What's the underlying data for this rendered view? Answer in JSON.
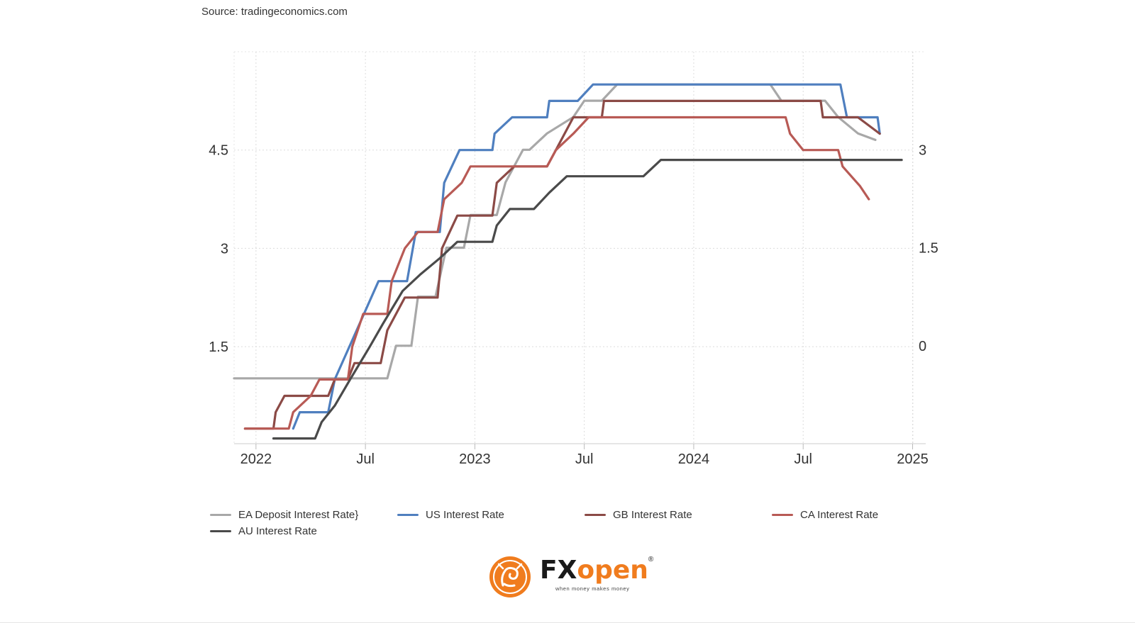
{
  "source": "Source: tradingeconomics.com",
  "chart_data": {
    "type": "line",
    "title": "",
    "xlabel": "",
    "x_ticks": [
      "2022",
      "Jul",
      "2023",
      "Jul",
      "2024",
      "Jul",
      "2025"
    ],
    "x_tick_values": [
      2022.0,
      2022.5,
      2023.0,
      2023.5,
      2024.0,
      2024.5,
      2025.0
    ],
    "xlim": [
      2021.9,
      2025.06
    ],
    "y_left": {
      "ticks": [
        "1.5",
        "3",
        "4.5"
      ],
      "values": [
        1.5,
        3,
        4.5
      ],
      "lim": [
        0.02,
        6.0
      ]
    },
    "y_right": {
      "ticks": [
        "0",
        "1.5",
        "3"
      ],
      "values": [
        0,
        1.5,
        3
      ],
      "lim": [
        -1.5,
        4.5
      ]
    },
    "grid": true,
    "legend_position": "bottom",
    "series": [
      {
        "name": "EA Deposit Interest Rate",
        "color": "#a8a8a8",
        "axis": "right",
        "points": [
          [
            2021.9,
            -0.5
          ],
          [
            2022.6,
            -0.5
          ],
          [
            2022.6,
            -0.5
          ],
          [
            2022.64,
            0.0
          ],
          [
            2022.68,
            0.0
          ],
          [
            2022.71,
            0.0
          ],
          [
            2022.74,
            0.75
          ],
          [
            2022.82,
            0.75
          ],
          [
            2022.87,
            1.5
          ],
          [
            2022.95,
            1.5
          ],
          [
            2022.98,
            2.0
          ],
          [
            2023.1,
            2.0
          ],
          [
            2023.14,
            2.5
          ],
          [
            2023.22,
            3.0
          ],
          [
            2023.25,
            3.0
          ],
          [
            2023.33,
            3.25
          ],
          [
            2023.45,
            3.5
          ],
          [
            2023.5,
            3.75
          ],
          [
            2023.58,
            3.75
          ],
          [
            2023.65,
            4.0
          ],
          [
            2024.35,
            4.0
          ],
          [
            2024.4,
            3.75
          ],
          [
            2024.6,
            3.75
          ],
          [
            2024.66,
            3.5
          ],
          [
            2024.75,
            3.25
          ],
          [
            2024.83,
            3.15
          ]
        ]
      },
      {
        "name": "US Interest Rate",
        "color": "#4f7fbf",
        "axis": "left",
        "points": [
          [
            2022.17,
            0.25
          ],
          [
            2022.2,
            0.5
          ],
          [
            2022.33,
            0.5
          ],
          [
            2022.36,
            1.0
          ],
          [
            2022.46,
            1.75
          ],
          [
            2022.56,
            2.5
          ],
          [
            2022.69,
            2.5
          ],
          [
            2022.73,
            3.25
          ],
          [
            2022.84,
            3.25
          ],
          [
            2022.86,
            4.0
          ],
          [
            2022.93,
            4.5
          ],
          [
            2023.08,
            4.5
          ],
          [
            2023.09,
            4.75
          ],
          [
            2023.17,
            5.0
          ],
          [
            2023.33,
            5.0
          ],
          [
            2023.34,
            5.25
          ],
          [
            2023.47,
            5.25
          ],
          [
            2023.54,
            5.5
          ],
          [
            2024.67,
            5.5
          ],
          [
            2024.7,
            5.0
          ],
          [
            2024.84,
            5.0
          ],
          [
            2024.85,
            4.75
          ]
        ]
      },
      {
        "name": "GB Interest Rate",
        "color": "#8b4a46",
        "axis": "left",
        "points": [
          [
            2021.95,
            0.25
          ],
          [
            2022.08,
            0.25
          ],
          [
            2022.09,
            0.5
          ],
          [
            2022.13,
            0.75
          ],
          [
            2022.33,
            0.75
          ],
          [
            2022.36,
            1.0
          ],
          [
            2022.42,
            1.0
          ],
          [
            2022.45,
            1.25
          ],
          [
            2022.57,
            1.25
          ],
          [
            2022.6,
            1.75
          ],
          [
            2022.68,
            2.25
          ],
          [
            2022.83,
            2.25
          ],
          [
            2022.85,
            3.0
          ],
          [
            2022.92,
            3.5
          ],
          [
            2023.08,
            3.5
          ],
          [
            2023.1,
            4.0
          ],
          [
            2023.18,
            4.25
          ],
          [
            2023.33,
            4.25
          ],
          [
            2023.37,
            4.5
          ],
          [
            2023.45,
            5.0
          ],
          [
            2023.58,
            5.0
          ],
          [
            2023.59,
            5.25
          ],
          [
            2024.58,
            5.25
          ],
          [
            2024.59,
            5.0
          ],
          [
            2024.75,
            5.0
          ],
          [
            2024.85,
            4.75
          ]
        ]
      },
      {
        "name": "CA Interest Rate",
        "color": "#b85a55",
        "axis": "left",
        "points": [
          [
            2021.95,
            0.25
          ],
          [
            2022.15,
            0.25
          ],
          [
            2022.17,
            0.5
          ],
          [
            2022.25,
            0.75
          ],
          [
            2022.29,
            1.0
          ],
          [
            2022.42,
            1.0
          ],
          [
            2022.44,
            1.5
          ],
          [
            2022.49,
            2.0
          ],
          [
            2022.6,
            2.0
          ],
          [
            2022.62,
            2.5
          ],
          [
            2022.68,
            3.0
          ],
          [
            2022.74,
            3.25
          ],
          [
            2022.83,
            3.25
          ],
          [
            2022.86,
            3.75
          ],
          [
            2022.94,
            4.0
          ],
          [
            2022.98,
            4.25
          ],
          [
            2023.33,
            4.25
          ],
          [
            2023.37,
            4.5
          ],
          [
            2023.45,
            4.75
          ],
          [
            2023.52,
            5.0
          ],
          [
            2024.42,
            5.0
          ],
          [
            2024.44,
            4.75
          ],
          [
            2024.5,
            4.5
          ],
          [
            2024.66,
            4.5
          ],
          [
            2024.68,
            4.25
          ],
          [
            2024.76,
            3.95
          ],
          [
            2024.8,
            3.75
          ]
        ]
      },
      {
        "name": "AU Interest Rate",
        "color": "#4a4a4a",
        "axis": "left",
        "points": [
          [
            2022.08,
            0.1
          ],
          [
            2022.27,
            0.1
          ],
          [
            2022.3,
            0.35
          ],
          [
            2022.36,
            0.6
          ],
          [
            2022.43,
            1.0
          ],
          [
            2022.52,
            1.5
          ],
          [
            2022.58,
            1.85
          ],
          [
            2022.67,
            2.35
          ],
          [
            2022.75,
            2.6
          ],
          [
            2022.84,
            2.85
          ],
          [
            2022.92,
            3.1
          ],
          [
            2023.08,
            3.1
          ],
          [
            2023.1,
            3.35
          ],
          [
            2023.16,
            3.6
          ],
          [
            2023.27,
            3.6
          ],
          [
            2023.34,
            3.85
          ],
          [
            2023.42,
            4.1
          ],
          [
            2023.77,
            4.1
          ],
          [
            2023.85,
            4.35
          ],
          [
            2024.95,
            4.35
          ]
        ]
      }
    ]
  },
  "legend": [
    {
      "label": "EA Deposit Interest Rate",
      "color": "#a8a8a8"
    },
    {
      "label": "US Interest Rate",
      "color": "#4f7fbf"
    },
    {
      "label": "GB Interest Rate",
      "color": "#8b4a46"
    },
    {
      "label": "CA Interest Rate",
      "color": "#b85a55"
    },
    {
      "label": "AU Interest Rate",
      "color": "#4a4a4a"
    }
  ],
  "logo": {
    "brand_part1": "FX",
    "brand_part2": "open",
    "tagline": "when money makes money",
    "registered": "®",
    "colors": {
      "dark": "#1a1a1a",
      "orange": "#f07c1e"
    }
  }
}
